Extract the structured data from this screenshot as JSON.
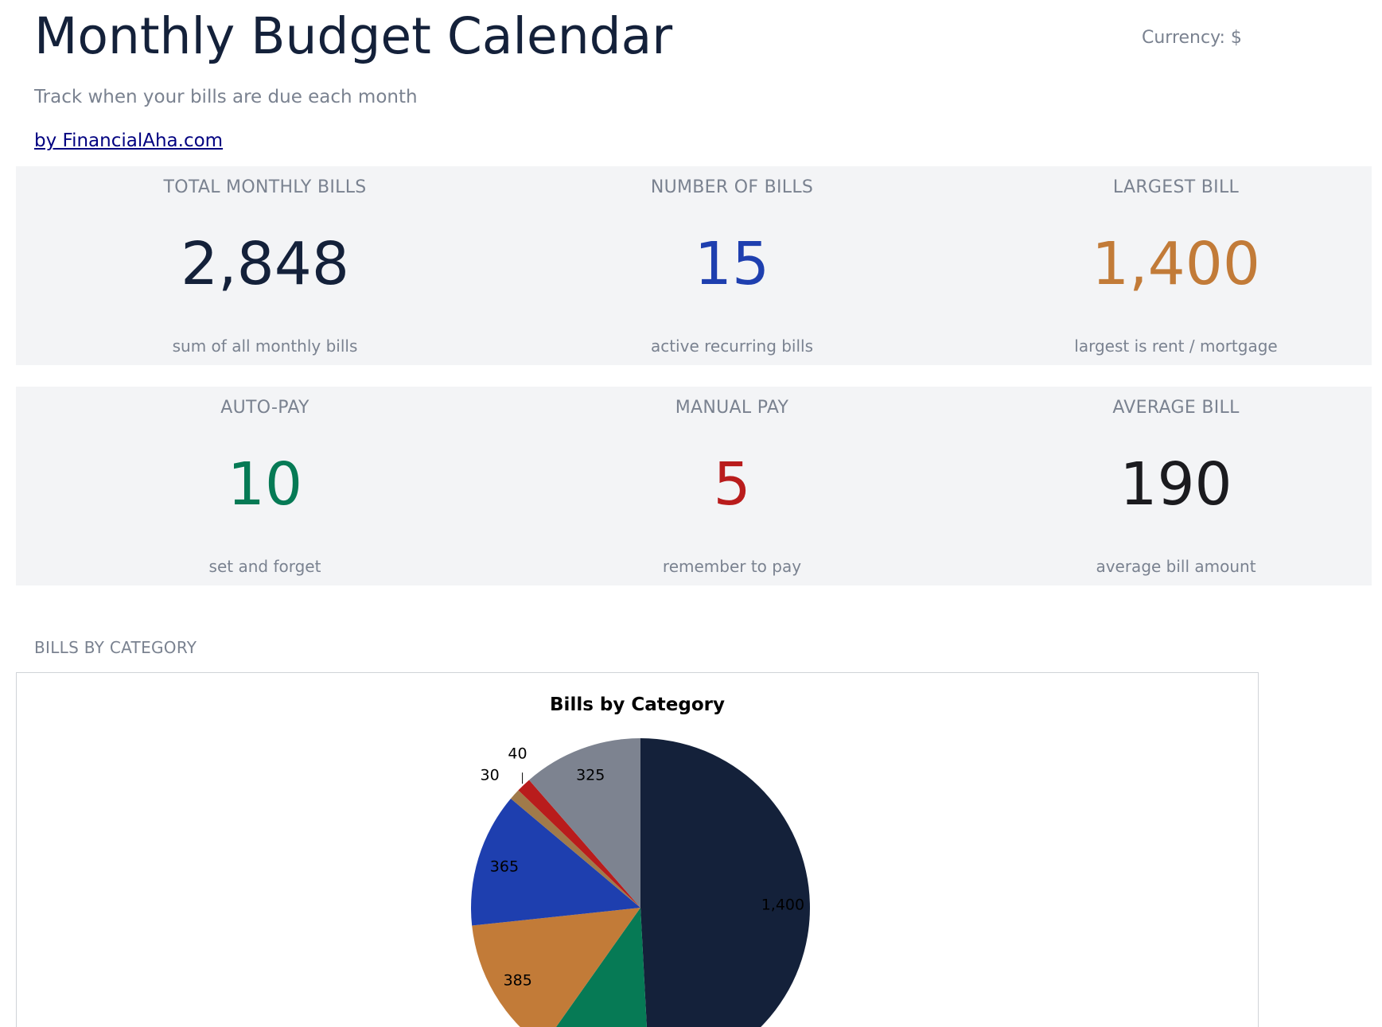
{
  "header": {
    "title": "Monthly Budget Calendar",
    "currency_label": "Currency: $",
    "subtitle": "Track when your bills are due each month",
    "byline": "by FinancialAha.com"
  },
  "stats": [
    {
      "label": "TOTAL MONTHLY BILLS",
      "value": "2,848",
      "sub": "sum of all monthly bills",
      "color": "#14213a"
    },
    {
      "label": "NUMBER OF BILLS",
      "value": "15",
      "sub": "active recurring bills",
      "color": "#1e3faf"
    },
    {
      "label": "LARGEST BILL",
      "value": "1,400",
      "sub": "largest is rent / mortgage",
      "color": "#c27b38"
    },
    {
      "label": "AUTO-PAY",
      "value": "10",
      "sub": "set and forget",
      "color": "#067a55"
    },
    {
      "label": "MANUAL PAY",
      "value": "5",
      "sub": "remember to pay",
      "color": "#b91c1c"
    },
    {
      "label": "AVERAGE BILL",
      "value": "190",
      "sub": "average bill amount",
      "color": "#1b1b1f"
    }
  ],
  "section_heading": "BILLS BY CATEGORY",
  "chart_data": {
    "type": "pie",
    "title": "Bills by Category",
    "values": [
      1400,
      303,
      385,
      365,
      30,
      40,
      325
    ],
    "labels": [
      "1,400",
      "",
      "385",
      "365",
      "30",
      "40",
      "325"
    ],
    "colors": [
      "#14213a",
      "#067a55",
      "#c27b38",
      "#1e3faf",
      "#a07a4a",
      "#b91c1c",
      "#7d8390"
    ],
    "start_angle_deg": 90,
    "direction": "clockwise",
    "legend": "none"
  }
}
